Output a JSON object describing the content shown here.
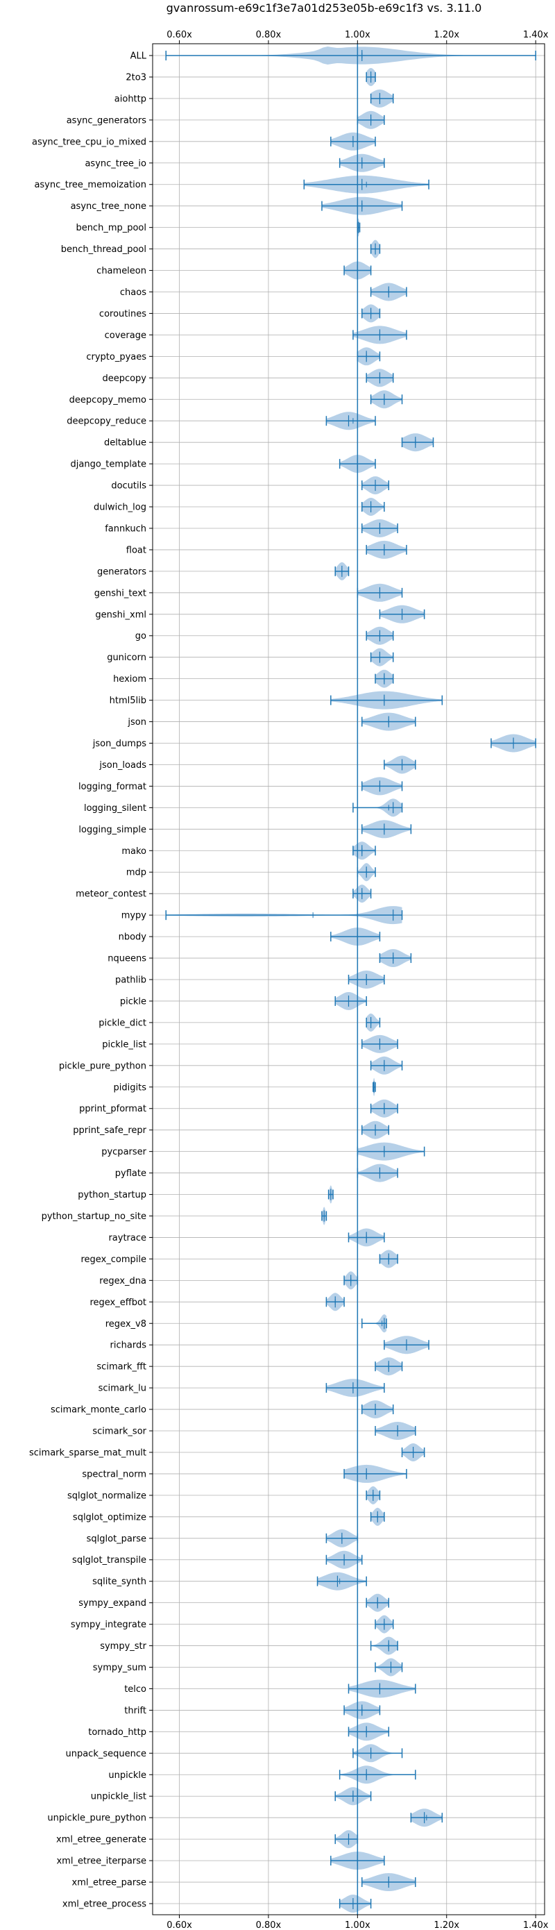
{
  "chart_data": {
    "type": "violin",
    "title": "gvanrossum-e69c1f3e7a01d253e05b-e69c1f3 vs. 3.11.0",
    "xlabel": "",
    "ylabel": "",
    "xlim": [
      0.54,
      1.42
    ],
    "xticks": [
      0.6,
      0.8,
      1.0,
      1.2,
      1.4
    ],
    "xtick_labels": [
      "0.60x",
      "0.80x",
      "1.00x",
      "1.20x",
      "1.40x"
    ],
    "xtick_position": "top-and-bottom",
    "reference_line": 1.0,
    "grid": true,
    "colors": {
      "violin": "#aecbe6",
      "line": "#1f77b4",
      "grid": "#b0b0b0"
    },
    "benchmarks": [
      {
        "name": "ALL",
        "min": 0.57,
        "max": 1.4,
        "median": 1.01,
        "mean": 1.01,
        "spread": 0.09
      },
      {
        "name": "2to3",
        "min": 1.02,
        "max": 1.04,
        "median": 1.03,
        "mean": 1.03,
        "spread": 0.01
      },
      {
        "name": "aiohttp",
        "min": 1.03,
        "max": 1.08,
        "median": 1.05,
        "mean": 1.05,
        "spread": 0.02
      },
      {
        "name": "async_generators",
        "min": 1.0,
        "max": 1.06,
        "median": 1.03,
        "mean": 1.03,
        "spread": 0.02
      },
      {
        "name": "async_tree_cpu_io_mixed",
        "min": 0.94,
        "max": 1.04,
        "median": 0.99,
        "mean": 1.0,
        "spread": 0.03
      },
      {
        "name": "async_tree_io",
        "min": 0.96,
        "max": 1.06,
        "median": 1.01,
        "mean": 1.01,
        "spread": 0.03
      },
      {
        "name": "async_tree_memoization",
        "min": 0.88,
        "max": 1.16,
        "median": 1.01,
        "mean": 1.02,
        "spread": 0.07
      },
      {
        "name": "async_tree_none",
        "min": 0.92,
        "max": 1.1,
        "median": 1.01,
        "mean": 1.01,
        "spread": 0.05
      },
      {
        "name": "bench_mp_pool",
        "min": 1.0,
        "max": 1.005,
        "median": 1.002,
        "mean": 1.002,
        "spread": 0.002
      },
      {
        "name": "bench_thread_pool",
        "min": 1.03,
        "max": 1.05,
        "median": 1.04,
        "mean": 1.04,
        "spread": 0.008
      },
      {
        "name": "chameleon",
        "min": 0.97,
        "max": 1.03,
        "median": 1.0,
        "mean": 1.0,
        "spread": 0.02
      },
      {
        "name": "chaos",
        "min": 1.03,
        "max": 1.11,
        "median": 1.07,
        "mean": 1.07,
        "spread": 0.025
      },
      {
        "name": "coroutines",
        "min": 1.01,
        "max": 1.05,
        "median": 1.03,
        "mean": 1.03,
        "spread": 0.015
      },
      {
        "name": "coverage",
        "min": 0.99,
        "max": 1.11,
        "median": 1.05,
        "mean": 1.05,
        "spread": 0.035
      },
      {
        "name": "crypto_pyaes",
        "min": 1.0,
        "max": 1.05,
        "median": 1.02,
        "mean": 1.02,
        "spread": 0.018
      },
      {
        "name": "deepcopy",
        "min": 1.02,
        "max": 1.08,
        "median": 1.05,
        "mean": 1.05,
        "spread": 0.02
      },
      {
        "name": "deepcopy_memo",
        "min": 1.03,
        "max": 1.1,
        "median": 1.06,
        "mean": 1.06,
        "spread": 0.02
      },
      {
        "name": "deepcopy_reduce",
        "min": 0.93,
        "max": 1.04,
        "median": 0.98,
        "mean": 0.99,
        "spread": 0.03
      },
      {
        "name": "deltablue",
        "min": 1.1,
        "max": 1.17,
        "median": 1.13,
        "mean": 1.13,
        "spread": 0.025
      },
      {
        "name": "django_template",
        "min": 0.96,
        "max": 1.04,
        "median": 1.0,
        "mean": 1.0,
        "spread": 0.022
      },
      {
        "name": "docutils",
        "min": 1.01,
        "max": 1.07,
        "median": 1.04,
        "mean": 1.04,
        "spread": 0.018
      },
      {
        "name": "dulwich_log",
        "min": 1.01,
        "max": 1.06,
        "median": 1.03,
        "mean": 1.03,
        "spread": 0.015
      },
      {
        "name": "fannkuch",
        "min": 1.01,
        "max": 1.09,
        "median": 1.05,
        "mean": 1.05,
        "spread": 0.025
      },
      {
        "name": "float",
        "min": 1.02,
        "max": 1.11,
        "median": 1.06,
        "mean": 1.06,
        "spread": 0.028
      },
      {
        "name": "generators",
        "min": 0.95,
        "max": 0.98,
        "median": 0.965,
        "mean": 0.965,
        "spread": 0.01
      },
      {
        "name": "genshi_text",
        "min": 1.0,
        "max": 1.1,
        "median": 1.05,
        "mean": 1.05,
        "spread": 0.03
      },
      {
        "name": "genshi_xml",
        "min": 1.05,
        "max": 1.15,
        "median": 1.1,
        "mean": 1.1,
        "spread": 0.03
      },
      {
        "name": "go",
        "min": 1.02,
        "max": 1.08,
        "median": 1.05,
        "mean": 1.05,
        "spread": 0.02
      },
      {
        "name": "gunicorn",
        "min": 1.03,
        "max": 1.08,
        "median": 1.05,
        "mean": 1.05,
        "spread": 0.015
      },
      {
        "name": "hexiom",
        "min": 1.04,
        "max": 1.08,
        "median": 1.06,
        "mean": 1.06,
        "spread": 0.015
      },
      {
        "name": "html5lib",
        "min": 0.94,
        "max": 1.19,
        "median": 1.06,
        "mean": 1.06,
        "spread": 0.06
      },
      {
        "name": "json",
        "min": 1.01,
        "max": 1.13,
        "median": 1.07,
        "mean": 1.07,
        "spread": 0.035
      },
      {
        "name": "json_dumps",
        "min": 1.3,
        "max": 1.4,
        "median": 1.35,
        "mean": 1.35,
        "spread": 0.03
      },
      {
        "name": "json_loads",
        "min": 1.06,
        "max": 1.13,
        "median": 1.1,
        "mean": 1.1,
        "spread": 0.02
      },
      {
        "name": "logging_format",
        "min": 1.01,
        "max": 1.1,
        "median": 1.05,
        "mean": 1.05,
        "spread": 0.028
      },
      {
        "name": "logging_silent",
        "min": 0.99,
        "max": 1.1,
        "median": 1.08,
        "mean": 1.07,
        "spread": 0.015
      },
      {
        "name": "logging_simple",
        "min": 1.01,
        "max": 1.12,
        "median": 1.06,
        "mean": 1.06,
        "spread": 0.03
      },
      {
        "name": "mako",
        "min": 0.99,
        "max": 1.04,
        "median": 1.01,
        "mean": 1.01,
        "spread": 0.015
      },
      {
        "name": "mdp",
        "min": 1.0,
        "max": 1.04,
        "median": 1.02,
        "mean": 1.02,
        "spread": 0.01
      },
      {
        "name": "meteor_contest",
        "min": 0.99,
        "max": 1.03,
        "median": 1.01,
        "mean": 1.01,
        "spread": 0.012
      },
      {
        "name": "mypy",
        "min": 0.57,
        "max": 1.1,
        "median": 1.08,
        "mean": 0.9,
        "spread": 0.04
      },
      {
        "name": "nbody",
        "min": 0.94,
        "max": 1.05,
        "median": 1.0,
        "mean": 1.0,
        "spread": 0.03
      },
      {
        "name": "nqueens",
        "min": 1.05,
        "max": 1.12,
        "median": 1.08,
        "mean": 1.08,
        "spread": 0.022
      },
      {
        "name": "pathlib",
        "min": 0.98,
        "max": 1.06,
        "median": 1.02,
        "mean": 1.02,
        "spread": 0.025
      },
      {
        "name": "pickle",
        "min": 0.95,
        "max": 1.02,
        "median": 0.98,
        "mean": 0.98,
        "spread": 0.02
      },
      {
        "name": "pickle_dict",
        "min": 1.02,
        "max": 1.05,
        "median": 1.03,
        "mean": 1.03,
        "spread": 0.01
      },
      {
        "name": "pickle_list",
        "min": 1.01,
        "max": 1.09,
        "median": 1.05,
        "mean": 1.05,
        "spread": 0.025
      },
      {
        "name": "pickle_pure_python",
        "min": 1.03,
        "max": 1.1,
        "median": 1.06,
        "mean": 1.06,
        "spread": 0.02
      },
      {
        "name": "pidigits",
        "min": 1.035,
        "max": 1.04,
        "median": 1.037,
        "mean": 1.037,
        "spread": 0.002
      },
      {
        "name": "pprint_pformat",
        "min": 1.03,
        "max": 1.09,
        "median": 1.06,
        "mean": 1.06,
        "spread": 0.02
      },
      {
        "name": "pprint_safe_repr",
        "min": 1.01,
        "max": 1.07,
        "median": 1.04,
        "mean": 1.04,
        "spread": 0.02
      },
      {
        "name": "pycparser",
        "min": 1.0,
        "max": 1.15,
        "median": 1.06,
        "mean": 1.06,
        "spread": 0.04
      },
      {
        "name": "pyflate",
        "min": 1.0,
        "max": 1.09,
        "median": 1.05,
        "mean": 1.05,
        "spread": 0.025
      },
      {
        "name": "python_startup",
        "min": 0.935,
        "max": 0.945,
        "median": 0.94,
        "mean": 0.94,
        "spread": 0.003
      },
      {
        "name": "python_startup_no_site",
        "min": 0.92,
        "max": 0.93,
        "median": 0.925,
        "mean": 0.925,
        "spread": 0.003
      },
      {
        "name": "raytrace",
        "min": 0.98,
        "max": 1.06,
        "median": 1.02,
        "mean": 1.02,
        "spread": 0.022
      },
      {
        "name": "regex_compile",
        "min": 1.05,
        "max": 1.09,
        "median": 1.07,
        "mean": 1.07,
        "spread": 0.015
      },
      {
        "name": "regex_dna",
        "min": 0.97,
        "max": 1.0,
        "median": 0.985,
        "mean": 0.985,
        "spread": 0.01
      },
      {
        "name": "regex_effbot",
        "min": 0.93,
        "max": 0.97,
        "median": 0.95,
        "mean": 0.95,
        "spread": 0.012
      },
      {
        "name": "regex_v8",
        "min": 1.01,
        "max": 1.065,
        "median": 1.06,
        "mean": 1.055,
        "spread": 0.008
      },
      {
        "name": "richards",
        "min": 1.06,
        "max": 1.16,
        "median": 1.11,
        "mean": 1.11,
        "spread": 0.03
      },
      {
        "name": "scimark_fft",
        "min": 1.04,
        "max": 1.1,
        "median": 1.07,
        "mean": 1.07,
        "spread": 0.02
      },
      {
        "name": "scimark_lu",
        "min": 0.93,
        "max": 1.06,
        "median": 0.99,
        "mean": 0.99,
        "spread": 0.035
      },
      {
        "name": "scimark_monte_carlo",
        "min": 1.01,
        "max": 1.08,
        "median": 1.04,
        "mean": 1.04,
        "spread": 0.022
      },
      {
        "name": "scimark_sor",
        "min": 1.04,
        "max": 1.13,
        "median": 1.09,
        "mean": 1.09,
        "spread": 0.028
      },
      {
        "name": "scimark_sparse_mat_mult",
        "min": 1.1,
        "max": 1.15,
        "median": 1.125,
        "mean": 1.125,
        "spread": 0.015
      },
      {
        "name": "spectral_norm",
        "min": 0.97,
        "max": 1.11,
        "median": 1.02,
        "mean": 1.02,
        "spread": 0.04
      },
      {
        "name": "sqlglot_normalize",
        "min": 1.02,
        "max": 1.05,
        "median": 1.035,
        "mean": 1.035,
        "spread": 0.01
      },
      {
        "name": "sqlglot_optimize",
        "min": 1.03,
        "max": 1.06,
        "median": 1.045,
        "mean": 1.045,
        "spread": 0.01
      },
      {
        "name": "sqlglot_parse",
        "min": 0.93,
        "max": 1.0,
        "median": 0.965,
        "mean": 0.965,
        "spread": 0.02
      },
      {
        "name": "sqlglot_transpile",
        "min": 0.93,
        "max": 1.01,
        "median": 0.97,
        "mean": 0.97,
        "spread": 0.022
      },
      {
        "name": "sqlite_synth",
        "min": 0.91,
        "max": 1.02,
        "median": 0.955,
        "mean": 0.96,
        "spread": 0.03
      },
      {
        "name": "sympy_expand",
        "min": 1.02,
        "max": 1.07,
        "median": 1.045,
        "mean": 1.045,
        "spread": 0.015
      },
      {
        "name": "sympy_integrate",
        "min": 1.04,
        "max": 1.08,
        "median": 1.06,
        "mean": 1.06,
        "spread": 0.012
      },
      {
        "name": "sympy_str",
        "min": 1.03,
        "max": 1.09,
        "median": 1.07,
        "mean": 1.07,
        "spread": 0.015
      },
      {
        "name": "sympy_sum",
        "min": 1.04,
        "max": 1.1,
        "median": 1.075,
        "mean": 1.075,
        "spread": 0.015
      },
      {
        "name": "telco",
        "min": 0.98,
        "max": 1.13,
        "median": 1.05,
        "mean": 1.05,
        "spread": 0.04
      },
      {
        "name": "thrift",
        "min": 0.97,
        "max": 1.05,
        "median": 1.01,
        "mean": 1.01,
        "spread": 0.025
      },
      {
        "name": "tornado_http",
        "min": 0.98,
        "max": 1.07,
        "median": 1.02,
        "mean": 1.02,
        "spread": 0.025
      },
      {
        "name": "unpack_sequence",
        "min": 0.99,
        "max": 1.1,
        "median": 1.03,
        "mean": 1.03,
        "spread": 0.02
      },
      {
        "name": "unpickle",
        "min": 0.96,
        "max": 1.13,
        "median": 1.02,
        "mean": 1.02,
        "spread": 0.025
      },
      {
        "name": "unpickle_list",
        "min": 0.95,
        "max": 1.03,
        "median": 0.99,
        "mean": 0.99,
        "spread": 0.02
      },
      {
        "name": "unpickle_pure_python",
        "min": 1.12,
        "max": 1.19,
        "median": 1.15,
        "mean": 1.155,
        "spread": 0.022
      },
      {
        "name": "xml_etree_generate",
        "min": 0.95,
        "max": 1.0,
        "median": 0.98,
        "mean": 0.98,
        "spread": 0.015
      },
      {
        "name": "xml_etree_iterparse",
        "min": 0.94,
        "max": 1.06,
        "median": 1.0,
        "mean": 1.0,
        "spread": 0.035
      },
      {
        "name": "xml_etree_parse",
        "min": 1.01,
        "max": 1.13,
        "median": 1.07,
        "mean": 1.07,
        "spread": 0.035
      },
      {
        "name": "xml_etree_process",
        "min": 0.96,
        "max": 1.03,
        "median": 0.99,
        "mean": 0.99,
        "spread": 0.02
      }
    ]
  }
}
